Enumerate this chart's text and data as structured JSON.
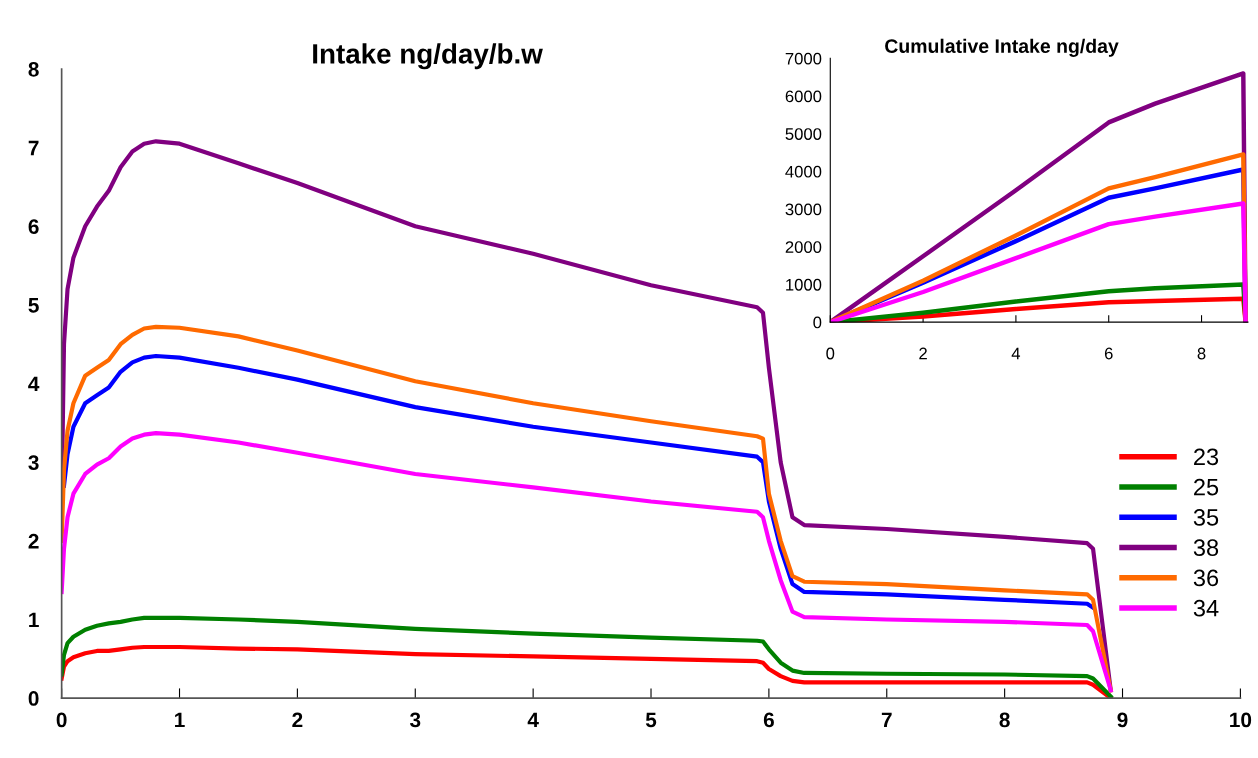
{
  "chart_data": [
    {
      "type": "line",
      "title": "Intake ng/day/b.w",
      "x": [
        0,
        0.02,
        0.05,
        0.1,
        0.2,
        0.3,
        0.4,
        0.5,
        0.6,
        0.7,
        0.8,
        1.0,
        1.5,
        2,
        3,
        4,
        5,
        5.9,
        5.95,
        6.0,
        6.1,
        6.2,
        6.3,
        7,
        8,
        8.7,
        8.75,
        8.9
      ],
      "series": [
        {
          "name": "23",
          "color": "#ff0000",
          "values": [
            0.25,
            0.4,
            0.47,
            0.52,
            0.57,
            0.6,
            0.6,
            0.62,
            0.64,
            0.65,
            0.65,
            0.65,
            0.63,
            0.62,
            0.56,
            0.53,
            0.5,
            0.47,
            0.45,
            0.37,
            0.28,
            0.22,
            0.2,
            0.2,
            0.2,
            0.2,
            0.17,
            0.0
          ]
        },
        {
          "name": "25",
          "color": "#008000",
          "values": [
            0.3,
            0.55,
            0.7,
            0.78,
            0.87,
            0.92,
            0.95,
            0.97,
            1.0,
            1.02,
            1.02,
            1.02,
            1.0,
            0.97,
            0.88,
            0.82,
            0.77,
            0.73,
            0.72,
            0.62,
            0.45,
            0.35,
            0.32,
            0.31,
            0.3,
            0.28,
            0.25,
            0.02
          ]
        },
        {
          "name": "35",
          "color": "#0000ff",
          "values": [
            null,
            2.7,
            3.1,
            3.45,
            3.75,
            3.85,
            3.95,
            4.15,
            4.27,
            4.33,
            4.35,
            4.33,
            4.2,
            4.05,
            3.7,
            3.45,
            3.25,
            3.07,
            3.0,
            2.5,
            1.9,
            1.45,
            1.35,
            1.32,
            1.25,
            1.2,
            1.15,
            null
          ]
        },
        {
          "name": "38",
          "color": "#800080",
          "values": [
            2.5,
            4.5,
            5.2,
            5.6,
            6.0,
            6.25,
            6.45,
            6.75,
            6.95,
            7.05,
            7.08,
            7.05,
            6.8,
            6.55,
            6.0,
            5.65,
            5.25,
            4.97,
            4.9,
            4.2,
            3.0,
            2.3,
            2.2,
            2.15,
            2.05,
            1.97,
            1.9,
            0.1
          ]
        },
        {
          "name": "36",
          "color": "#ff6a00",
          "values": [
            2.0,
            2.9,
            3.4,
            3.75,
            4.1,
            4.2,
            4.3,
            4.5,
            4.62,
            4.7,
            4.72,
            4.71,
            4.6,
            4.42,
            4.03,
            3.75,
            3.52,
            3.33,
            3.3,
            2.6,
            2.0,
            1.55,
            1.48,
            1.45,
            1.37,
            1.32,
            1.25,
            0.1
          ]
        },
        {
          "name": "34",
          "color": "#ff00ff",
          "values": [
            1.35,
            1.9,
            2.3,
            2.6,
            2.85,
            2.97,
            3.05,
            3.2,
            3.3,
            3.35,
            3.37,
            3.35,
            3.25,
            3.12,
            2.85,
            2.68,
            2.5,
            2.37,
            2.3,
            2.0,
            1.5,
            1.1,
            1.03,
            1.0,
            0.97,
            0.93,
            0.85,
            0.1
          ]
        }
      ],
      "xlim": [
        0,
        10
      ],
      "xticks": [
        0,
        1,
        2,
        3,
        4,
        5,
        6,
        7,
        8,
        9,
        10
      ],
      "ylim": [
        0,
        8
      ],
      "yticks": [
        0,
        1,
        2,
        3,
        4,
        5,
        6,
        7,
        8
      ],
      "grid": false,
      "legend": "right",
      "marker": "none",
      "line_style": "solid"
    },
    {
      "type": "line",
      "title": "Cumulative Intake ng/day",
      "x": [
        0,
        2,
        4,
        6,
        7,
        8.9,
        8.95
      ],
      "series": [
        {
          "color": "#ff0000",
          "values": [
            0,
            150,
            350,
            530,
            560,
            620,
            0
          ]
        },
        {
          "color": "#008000",
          "values": [
            0,
            250,
            550,
            820,
            900,
            1000,
            0
          ]
        },
        {
          "color": "#0000ff",
          "values": [
            0,
            1050,
            2150,
            3300,
            3550,
            4050,
            0
          ]
        },
        {
          "color": "#800080",
          "values": [
            0,
            1750,
            3500,
            5300,
            5800,
            6600,
            0
          ]
        },
        {
          "color": "#ff6a00",
          "values": [
            0,
            1100,
            2300,
            3550,
            3850,
            4450,
            0
          ]
        },
        {
          "color": "#ff00ff",
          "values": [
            0,
            800,
            1700,
            2600,
            2800,
            3150,
            0
          ]
        }
      ],
      "xlim": [
        0,
        9
      ],
      "xticks": [
        0,
        2,
        4,
        6,
        8
      ],
      "ylim": [
        0,
        7000
      ],
      "yticks": [
        0,
        1000,
        2000,
        3000,
        4000,
        5000,
        6000,
        7000
      ],
      "grid": false,
      "legend": false,
      "marker": "none",
      "line_style": "solid"
    }
  ]
}
